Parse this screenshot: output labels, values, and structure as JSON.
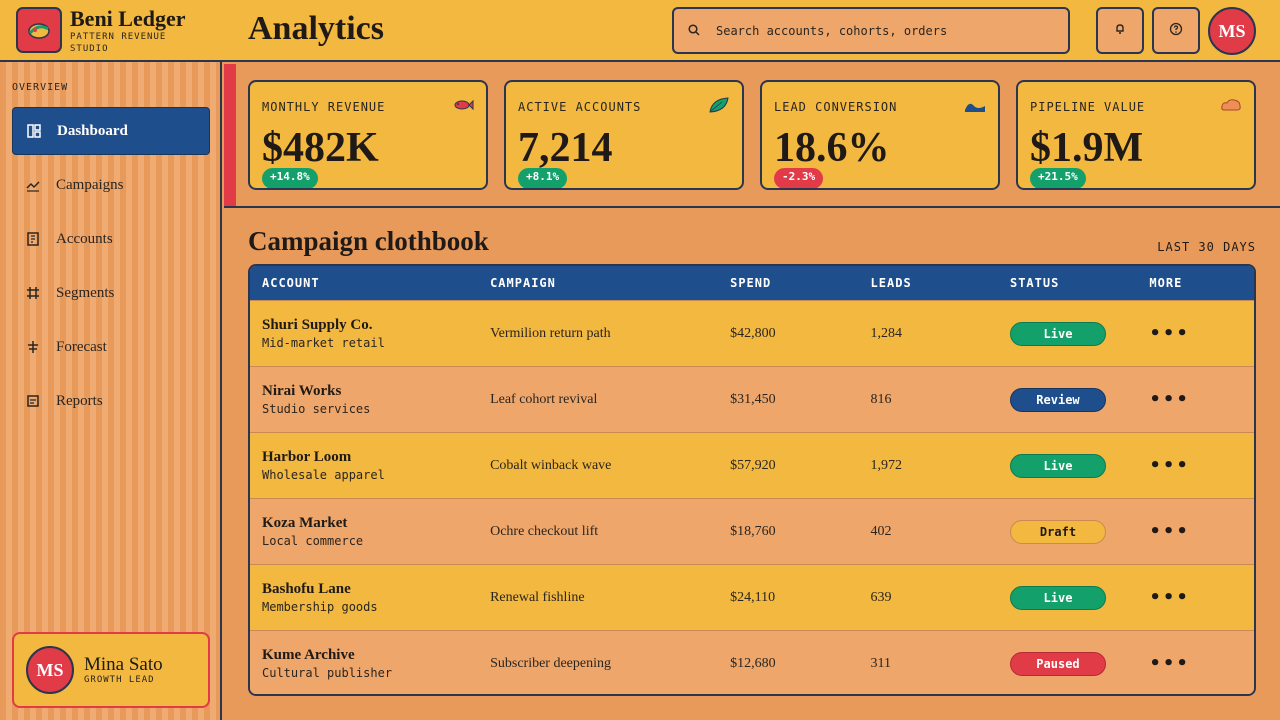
{
  "brand": {
    "name": "Beni Ledger",
    "subtitle": "PATTERN REVENUE STUDIO"
  },
  "header": {
    "title": "Analytics",
    "search_placeholder": "Search accounts, cohorts, orders",
    "avatar_initials": "MS"
  },
  "sidebar": {
    "section_label": "OVERVIEW",
    "items": [
      {
        "label": "Dashboard",
        "icon": "dashboard-icon",
        "active": true
      },
      {
        "label": "Campaigns",
        "icon": "trend-icon"
      },
      {
        "label": "Accounts",
        "icon": "building-icon"
      },
      {
        "label": "Segments",
        "icon": "hash-grid-icon"
      },
      {
        "label": "Forecast",
        "icon": "forecast-icon"
      },
      {
        "label": "Reports",
        "icon": "report-icon"
      }
    ],
    "user": {
      "initials": "MS",
      "name": "Mina Sato",
      "role": "GROWTH LEAD"
    }
  },
  "kpis": [
    {
      "label": "MONTHLY REVENUE",
      "value": "$482K",
      "delta": "+14.8%",
      "trend": "up",
      "icon": "fish-icon"
    },
    {
      "label": "ACTIVE ACCOUNTS",
      "value": "7,214",
      "delta": "+8.1%",
      "trend": "up",
      "icon": "leaf-icon"
    },
    {
      "label": "LEAD CONVERSION",
      "value": "18.6%",
      "delta": "-2.3%",
      "trend": "down",
      "icon": "wave-icon"
    },
    {
      "label": "PIPELINE VALUE",
      "value": "$1.9M",
      "delta": "+21.5%",
      "trend": "up",
      "icon": "cloud-icon"
    }
  ],
  "table": {
    "title": "Campaign clothbook",
    "range": "LAST 30 DAYS",
    "columns": [
      "ACCOUNT",
      "CAMPAIGN",
      "SPEND",
      "LEADS",
      "STATUS",
      "MORE"
    ],
    "rows": [
      {
        "account": "Shuri Supply Co.",
        "segment": "Mid-market retail",
        "campaign": "Vermilion return path",
        "spend": "$42,800",
        "leads": "1,284",
        "status": "Live"
      },
      {
        "account": "Nirai Works",
        "segment": "Studio services",
        "campaign": "Leaf cohort revival",
        "spend": "$31,450",
        "leads": "816",
        "status": "Review"
      },
      {
        "account": "Harbor Loom",
        "segment": "Wholesale apparel",
        "campaign": "Cobalt winback wave",
        "spend": "$57,920",
        "leads": "1,972",
        "status": "Live"
      },
      {
        "account": "Koza Market",
        "segment": "Local commerce",
        "campaign": "Ochre checkout lift",
        "spend": "$18,760",
        "leads": "402",
        "status": "Draft"
      },
      {
        "account": "Bashofu Lane",
        "segment": "Membership goods",
        "campaign": "Renewal fishline",
        "spend": "$24,110",
        "leads": "639",
        "status": "Live"
      },
      {
        "account": "Kume Archive",
        "segment": "Cultural publisher",
        "campaign": "Subscriber deepening",
        "spend": "$12,680",
        "leads": "311",
        "status": "Paused"
      }
    ],
    "more_glyph": "•••"
  },
  "colors": {
    "accent_red": "#e23b48",
    "accent_blue": "#1f4e8c",
    "mustard": "#f2b83f",
    "orange": "#e89a5a",
    "live": "#13a06a",
    "review": "#1f4e8c",
    "draft": "#f2b83f",
    "paused": "#e23b48"
  }
}
